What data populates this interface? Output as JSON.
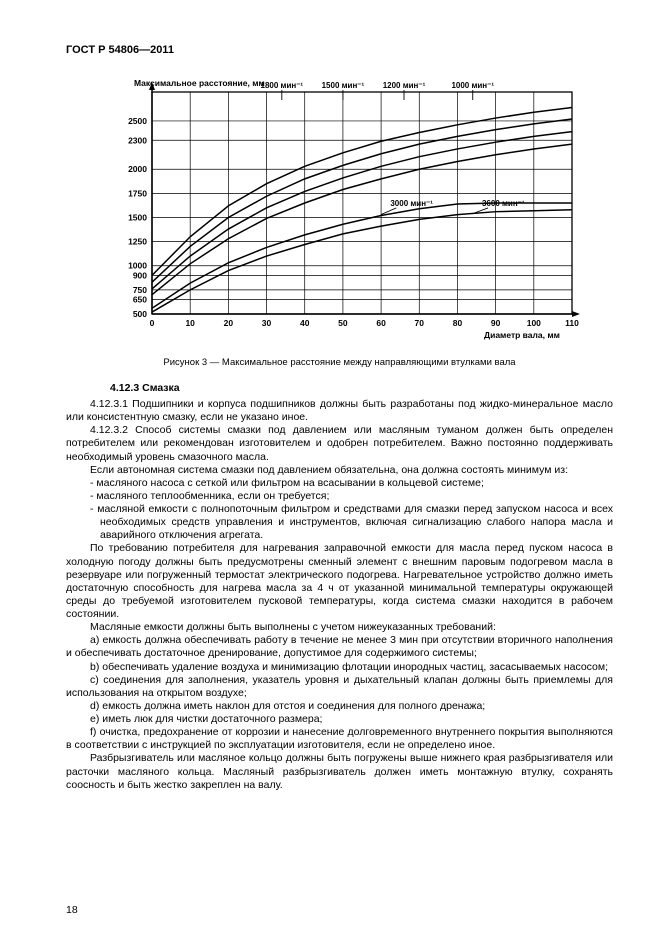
{
  "header": "ГОСТ Р 54806—2011",
  "page_number": "18",
  "figure": {
    "type": "line",
    "background_color": "#ffffff",
    "grid_color": "#000000",
    "line_width": 1.5,
    "y_title": "Максимальное расстояние, мм",
    "x_title": "Диаметр вала, мм",
    "title_fontsize": 8.5,
    "tick_fontsize": 8.5,
    "xlim": [
      0,
      110
    ],
    "ylim": [
      500,
      2800
    ],
    "x_ticks": [
      0,
      10,
      20,
      30,
      40,
      50,
      60,
      70,
      80,
      90,
      100,
      110
    ],
    "y_ticks": [
      500,
      650,
      750,
      900,
      1000,
      1250,
      1500,
      1750,
      2000,
      2300,
      2500
    ],
    "curve_labels": {
      "top_row": [
        "1800 мин⁻¹",
        "1500 мин⁻¹",
        "1200 мин⁻¹",
        "1000 мин⁻¹"
      ],
      "mid_row": [
        "3000 мин⁻¹",
        "3600 мин⁻¹"
      ]
    },
    "series": [
      {
        "name": "1000",
        "pts": [
          [
            0,
            900
          ],
          [
            10,
            1300
          ],
          [
            20,
            1620
          ],
          [
            30,
            1850
          ],
          [
            40,
            2030
          ],
          [
            50,
            2170
          ],
          [
            60,
            2290
          ],
          [
            70,
            2380
          ],
          [
            80,
            2460
          ],
          [
            90,
            2530
          ],
          [
            100,
            2590
          ],
          [
            110,
            2640
          ]
        ]
      },
      {
        "name": "1200",
        "pts": [
          [
            0,
            830
          ],
          [
            10,
            1200
          ],
          [
            20,
            1500
          ],
          [
            30,
            1720
          ],
          [
            40,
            1900
          ],
          [
            50,
            2040
          ],
          [
            60,
            2160
          ],
          [
            70,
            2260
          ],
          [
            80,
            2340
          ],
          [
            90,
            2410
          ],
          [
            100,
            2470
          ],
          [
            110,
            2520
          ]
        ]
      },
      {
        "name": "1500",
        "pts": [
          [
            0,
            760
          ],
          [
            10,
            1100
          ],
          [
            20,
            1380
          ],
          [
            30,
            1600
          ],
          [
            40,
            1770
          ],
          [
            50,
            1910
          ],
          [
            60,
            2030
          ],
          [
            70,
            2130
          ],
          [
            80,
            2210
          ],
          [
            90,
            2280
          ],
          [
            100,
            2340
          ],
          [
            110,
            2390
          ]
        ]
      },
      {
        "name": "1800",
        "pts": [
          [
            0,
            700
          ],
          [
            10,
            1020
          ],
          [
            20,
            1280
          ],
          [
            30,
            1490
          ],
          [
            40,
            1650
          ],
          [
            50,
            1790
          ],
          [
            60,
            1900
          ],
          [
            70,
            2000
          ],
          [
            80,
            2080
          ],
          [
            90,
            2150
          ],
          [
            100,
            2210
          ],
          [
            110,
            2260
          ]
        ]
      },
      {
        "name": "3000",
        "pts": [
          [
            0,
            560
          ],
          [
            10,
            820
          ],
          [
            20,
            1030
          ],
          [
            30,
            1190
          ],
          [
            40,
            1320
          ],
          [
            50,
            1430
          ],
          [
            60,
            1520
          ],
          [
            70,
            1590
          ],
          [
            80,
            1640
          ],
          [
            90,
            1650
          ],
          [
            100,
            1650
          ],
          [
            110,
            1650
          ]
        ]
      },
      {
        "name": "3600",
        "pts": [
          [
            0,
            520
          ],
          [
            10,
            750
          ],
          [
            20,
            950
          ],
          [
            30,
            1100
          ],
          [
            40,
            1220
          ],
          [
            50,
            1330
          ],
          [
            60,
            1410
          ],
          [
            70,
            1480
          ],
          [
            80,
            1530
          ],
          [
            90,
            1560
          ],
          [
            100,
            1570
          ],
          [
            110,
            1580
          ]
        ]
      }
    ]
  },
  "caption": "Рисунок 3 — Максимальное расстояние между направляющими втулками вала",
  "section_title": "4.12.3 Смазка",
  "paras": [
    "4.12.3.1  Подшипники и корпуса подшипников должны быть разработаны под жидко-минеральное масло или консистентную смазку, если не указано иное.",
    "4.12.3.2  Способ системы смазки под давлением или масляным туманом должен быть определен потребителем или рекомендован изготовителем и одобрен потребителем. Важно постоянно поддерживать необходимый уровень смазочного масла.",
    "Если автономная система смазки под давлением обязательна, она должна состоять минимум из:"
  ],
  "list1": [
    "масляного насоса с сеткой или фильтром на всасывании в кольцевой системе;",
    "масляного теплообменника, если он требуется;",
    "масляной емкости с полнопоточным фильтром и средствами для смазки перед запуском насоса и всех необходимых средств управления и инструментов, включая сигнализацию слабого напора масла и аварийного отключения агрегата."
  ],
  "para_after_list1": "По требованию потребителя для нагревания заправочной емкости для масла перед пуском насоса в холодную погоду должны быть предусмотрены сменный элемент с внешним паровым подогревом масла в резервуаре или погруженный термостат электрического подогрева. Нагревательное устройство должно иметь достаточную способность для нагрева масла за 4 ч от указанной минимальной температуры окружающей среды до требуемой изготовителем пусковой температуры, когда система смазки находится в рабочем состоянии.",
  "para_intro_letters": "Масляные емкости должны быть выполнены с учетом нижеуказанных требований:",
  "letters": [
    "a)  емкость должна обеспечивать работу в течение не менее 3 мин при отсутствии вторичного наполнения и обеспечивать достаточное дренирование, допустимое для содержимого системы;",
    "b)  обеспечивать удаление воздуха и минимизацию флотации инородных частиц, засасываемых насосом;",
    "c)  соединения для заполнения, указатель уровня и дыхательный клапан должны быть приемлемы для использования на открытом воздухе;",
    "d)  емкость должна иметь наклон для отстоя и соединения для полного дренажа;",
    "e)  иметь люк для чистки достаточного размера;",
    "f)  очистка, предохранение от коррозии и нанесение долговременного внутреннего покрытия выполняются в соответствии с инструкцией по эксплуатации изготовителя, если не определено иное."
  ],
  "para_last": "Разбрызгиватель или масляное кольцо должны быть погружены выше нижнего края разбрызгивателя или расточки масляного кольца. Масляный разбрызгиватель должен иметь монтажную втулку, сохранять соосность и быть жестко закреплен на валу."
}
